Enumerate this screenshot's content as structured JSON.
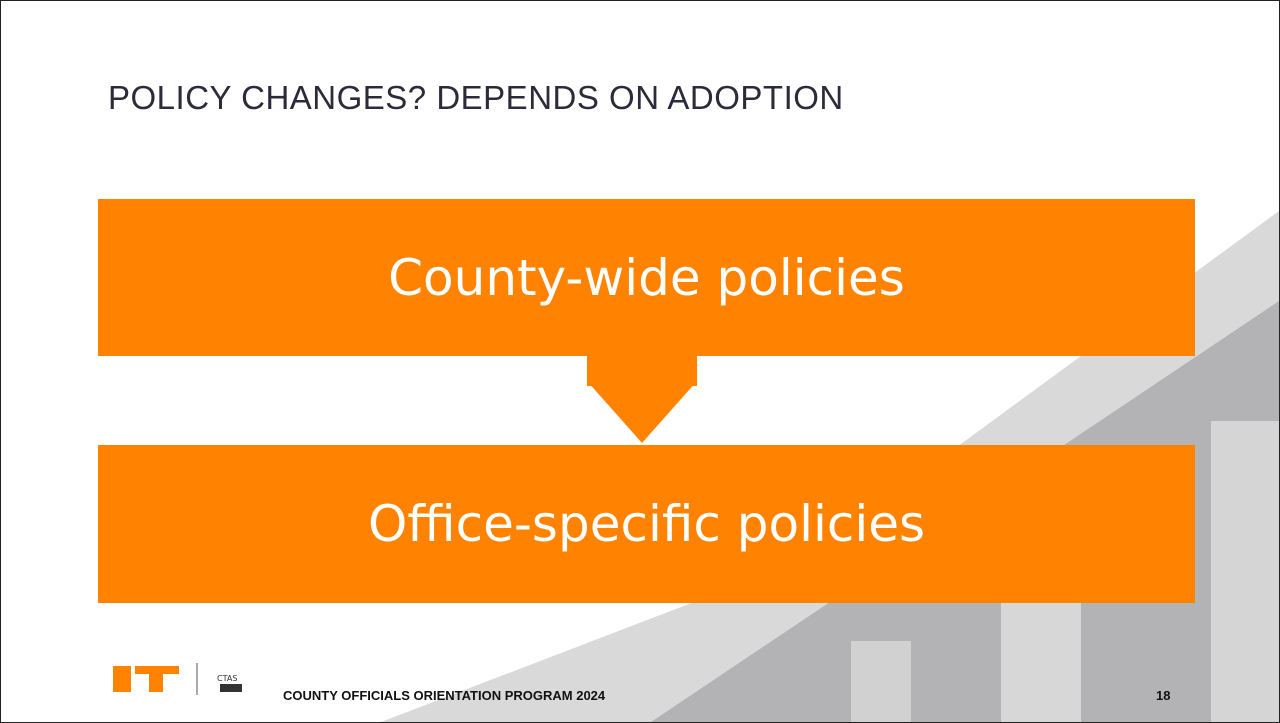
{
  "slide": {
    "title": "POLICY CHANGES? DEPENDS ON ADOPTION",
    "boxes": [
      "County-wide policies",
      "Office-specific policies"
    ],
    "footer": {
      "logo_ctas": "CTAS",
      "text": "COUNTY OFFICIALS ORIENTATION PROGRAM 2024",
      "page_number": "18"
    }
  }
}
